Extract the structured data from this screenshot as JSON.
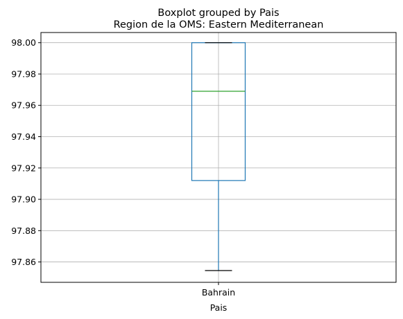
{
  "chart_data": {
    "type": "boxplot",
    "suptitle": "Boxplot grouped by Pais",
    "title": "Region de la OMS: Eastern Mediterranean",
    "xlabel": "Pais",
    "ylabel": "",
    "categories": [
      "Bahrain"
    ],
    "boxes": [
      {
        "category": "Bahrain",
        "whisker_low": 97.8545,
        "q1": 97.912,
        "median": 97.969,
        "q3": 98.0,
        "whisker_high": 98.0
      }
    ],
    "ylim": [
      97.847,
      98.0065
    ],
    "yticks": [
      97.86,
      97.88,
      97.9,
      97.92,
      97.94,
      97.96,
      97.98,
      98.0
    ],
    "ytick_labels": [
      "97.86",
      "97.88",
      "97.90",
      "97.92",
      "97.94",
      "97.96",
      "97.98",
      "98.00"
    ],
    "grid": true,
    "colors": {
      "box": "#1f77b4",
      "median": "#2ca02c",
      "caps": "#000000",
      "grid": "#b0b0b0"
    }
  }
}
